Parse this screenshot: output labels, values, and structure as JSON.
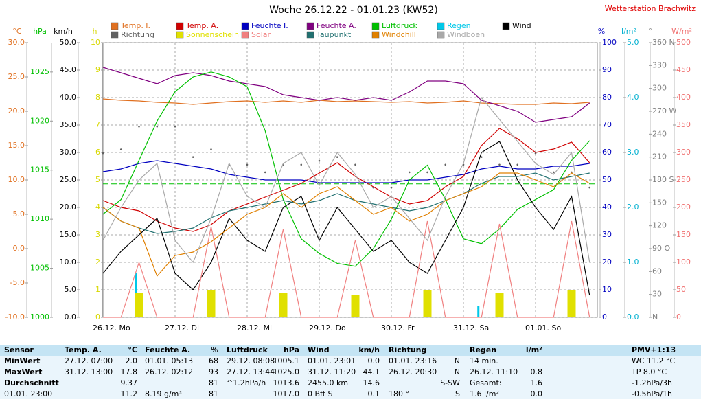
{
  "chart_data": {
    "type": "line",
    "title": "Woche 26.12.22 - 01.01.23 (KW52)",
    "station": "Wetterstation Brachwitz",
    "x_labels": [
      "26.12. Mo",
      "27.12. Di",
      "28.12. Mi",
      "29.12. Do",
      "30.12. Fr",
      "31.12. Sa",
      "01.01. So"
    ],
    "axes": [
      {
        "id": "t",
        "label": "°C",
        "color": "#e07020",
        "lim": [
          -10,
          30
        ],
        "ticks": [
          {
            "value": 30,
            "label": "30.0"
          },
          {
            "value": 25,
            "label": "25.0"
          },
          {
            "value": 20,
            "label": "20.0"
          },
          {
            "value": 15,
            "label": "15.0"
          },
          {
            "value": 10,
            "label": "10.0"
          },
          {
            "value": 5,
            "label": "5.0"
          },
          {
            "value": 0,
            "label": "0.0"
          },
          {
            "value": -5,
            "label": "-5.0"
          },
          {
            "value": -10,
            "label": "-10.0"
          }
        ]
      },
      {
        "id": "p",
        "label": "hPa",
        "color": "#00c000",
        "lim": [
          1000,
          1028
        ],
        "ticks": [
          1025,
          1020,
          1015,
          1010,
          1005,
          1000
        ]
      },
      {
        "id": "w",
        "label": "km/h",
        "color": "#000000",
        "lim": [
          0,
          50
        ],
        "ticks": [
          {
            "value": 50,
            "label": "50.0"
          },
          {
            "value": 45,
            "label": "45.0"
          },
          {
            "value": 40,
            "label": "40.0"
          },
          {
            "value": 35,
            "label": "35.0"
          },
          {
            "value": 30,
            "label": "30.0"
          },
          {
            "value": 25,
            "label": "25.0"
          },
          {
            "value": 20,
            "label": "20.0"
          },
          {
            "value": 15,
            "label": "15.0"
          },
          {
            "value": 10,
            "label": "10.0"
          },
          {
            "value": 5,
            "label": "5.0"
          },
          {
            "value": 0,
            "label": "0.0"
          }
        ]
      },
      {
        "id": "h",
        "label": "h",
        "color": "#d8d800",
        "lim": [
          0,
          10
        ],
        "ticks": [
          10,
          9,
          8,
          7,
          6,
          5,
          4,
          3,
          2,
          1,
          0
        ]
      },
      {
        "id": "rh",
        "label": "%",
        "color": "#0000c0",
        "lim": [
          0,
          100
        ],
        "ticks": [
          100,
          90,
          80,
          70,
          60,
          50,
          40,
          30,
          20,
          10,
          0
        ],
        "grid": true
      },
      {
        "id": "r",
        "label": "l/m²",
        "color": "#00b0d0",
        "lim": [
          0,
          5
        ],
        "ticks": [
          {
            "value": 5,
            "label": "5.0"
          },
          {
            "value": 4,
            "label": "4.0"
          },
          {
            "value": 3,
            "label": "3.0"
          },
          {
            "value": 2,
            "label": "2.0"
          },
          {
            "value": 1,
            "label": "1.0"
          },
          {
            "value": 0,
            "label": "0.0"
          }
        ]
      },
      {
        "id": "d",
        "label": "°",
        "color": "#808080",
        "lim": [
          0,
          360
        ],
        "ticks": [
          {
            "value": 360,
            "label": "360 N"
          },
          330,
          300,
          {
            "value": 270,
            "label": "270 W"
          },
          240,
          210,
          {
            "value": 180,
            "label": "180 S"
          },
          150,
          120,
          {
            "value": 90,
            "label": "90 O"
          },
          60,
          30,
          {
            "value": 0,
            "label": "N"
          }
        ]
      },
      {
        "id": "s",
        "label": "W/m²",
        "color": "#f07070",
        "lim": [
          0,
          500
        ],
        "ticks": [
          500,
          450,
          400,
          350,
          300,
          250,
          200,
          150,
          100,
          50,
          0
        ]
      }
    ],
    "series": [
      {
        "name": "Temp. I.",
        "color": "#e07020",
        "axis": "t",
        "style": "line",
        "values": [
          21.8,
          21.6,
          21.5,
          21.3,
          21.2,
          21.0,
          21.2,
          21.4,
          21.5,
          21.3,
          21.5,
          21.3,
          21.6,
          21.4,
          21.5,
          21.4,
          21.3,
          21.4,
          21.2,
          21.3,
          21.5,
          21.2,
          21.1,
          21.0,
          21.0,
          21.2,
          21.1,
          21.3
        ]
      },
      {
        "name": "Temp. A.",
        "color": "#d00000",
        "axis": "t",
        "style": "line",
        "values": [
          7.0,
          6.0,
          5.5,
          4.0,
          3.0,
          2.5,
          3.5,
          5.5,
          6.5,
          7.5,
          8.5,
          9.5,
          11.0,
          12.5,
          10.5,
          9.0,
          7.5,
          6.5,
          7.0,
          9.0,
          10.5,
          15.0,
          17.5,
          16.0,
          14.0,
          14.5,
          15.5,
          12.5
        ]
      },
      {
        "name": "Feuchte I.",
        "color": "#0000c0",
        "axis": "rh",
        "style": "line",
        "values": [
          53,
          54,
          56,
          57,
          56,
          55,
          54,
          52,
          51,
          50,
          50,
          50,
          49,
          49,
          49,
          49,
          49,
          50,
          50,
          51,
          52,
          54,
          55,
          54,
          54,
          55,
          55,
          56
        ]
      },
      {
        "name": "Feuchte A.",
        "color": "#800080",
        "axis": "rh",
        "style": "line",
        "values": [
          91,
          89,
          87,
          85,
          88,
          89,
          88,
          86,
          85,
          84,
          81,
          80,
          79,
          80,
          79,
          80,
          79,
          82,
          86,
          86,
          85,
          79,
          77,
          75,
          71,
          72,
          73,
          78
        ]
      },
      {
        "name": "Luftdruck",
        "color": "#00c000",
        "axis": "p",
        "style": "line",
        "values": [
          1010.5,
          1012,
          1016,
          1020,
          1023,
          1024.5,
          1025,
          1024.5,
          1023.5,
          1019,
          1012,
          1008,
          1006.5,
          1005.5,
          1005.2,
          1007,
          1010,
          1014,
          1015.5,
          1012,
          1008,
          1007.5,
          1009,
          1011,
          1012,
          1013,
          1016,
          1018
        ]
      },
      {
        "name": "Regen",
        "color": "#00c8e8",
        "axis": "r",
        "style": "bar",
        "values": [
          0,
          0,
          0.8,
          0,
          0,
          0,
          0,
          0,
          0,
          0,
          0,
          0,
          0,
          0,
          0,
          0,
          0,
          0,
          0,
          0,
          0,
          0.2,
          0,
          0,
          0,
          0,
          0,
          0
        ]
      },
      {
        "name": "Wind",
        "color": "#000000",
        "axis": "w",
        "style": "line",
        "values": [
          8,
          12,
          15,
          18,
          8,
          5,
          10,
          18,
          14,
          12,
          20,
          22,
          14,
          20,
          16,
          12,
          14,
          10,
          8,
          14,
          20,
          30,
          32,
          25,
          20,
          16,
          22,
          4
        ]
      },
      {
        "name": "Richtung",
        "color": "#606060",
        "axis": "d",
        "style": "dots",
        "values": [
          215,
          220,
          250,
          250,
          250,
          210,
          220,
          200,
          200,
          190,
          200,
          200,
          205,
          210,
          200,
          170,
          170,
          190,
          190,
          200,
          200,
          210,
          200,
          200,
          215,
          190,
          190,
          170
        ]
      },
      {
        "name": "Sonnenschein",
        "color": "#e0e000",
        "axis": "h",
        "style": "bar",
        "values": [
          0,
          0,
          0.9,
          0,
          0,
          0,
          1.0,
          0,
          0,
          0,
          0.9,
          0,
          0,
          0,
          0.8,
          0,
          0,
          0,
          1.0,
          0,
          0,
          0,
          0.9,
          0,
          0,
          0,
          1.0,
          0
        ]
      },
      {
        "name": "Solar",
        "color": "#f08080",
        "axis": "s",
        "style": "line",
        "values": [
          0,
          0,
          100,
          0,
          0,
          0,
          165,
          0,
          0,
          0,
          160,
          0,
          0,
          0,
          140,
          0,
          0,
          0,
          175,
          0,
          0,
          0,
          170,
          0,
          0,
          0,
          175,
          0
        ]
      },
      {
        "name": "Taupunkt",
        "color": "#207070",
        "axis": "t",
        "style": "line",
        "values": [
          6,
          4,
          3,
          2.2,
          2.5,
          3,
          4.5,
          5.5,
          6,
          6.5,
          7,
          6.5,
          7,
          8,
          7,
          6.5,
          6,
          5.5,
          6,
          7,
          8,
          9.5,
          10.5,
          10.5,
          11,
          10,
          10.5,
          11
        ]
      },
      {
        "name": "Windchill",
        "color": "#e08000",
        "axis": "t",
        "style": "line",
        "values": [
          6,
          4,
          3,
          -4,
          -1,
          -0.5,
          1,
          3,
          5,
          6,
          8,
          6,
          8,
          9,
          7,
          5,
          6,
          4,
          5,
          7,
          8,
          9,
          11,
          11,
          10,
          9,
          11,
          9.5
        ]
      },
      {
        "name": "Windböen",
        "color": "#a8a8a8",
        "axis": "w",
        "style": "line",
        "values": [
          14,
          20,
          25,
          28,
          14,
          10,
          18,
          28,
          22,
          20,
          28,
          30,
          24,
          30,
          26,
          20,
          22,
          18,
          14,
          22,
          28,
          40,
          36,
          32,
          28,
          26,
          30,
          10
        ]
      }
    ],
    "pressure_mean": 1013.6
  },
  "table": {
    "rows": [
      [
        "Sensor",
        "Temp. A.",
        "°C",
        "Feuchte A.",
        "%",
        "Luftdruck",
        "hPa",
        "Wind",
        "km/h",
        "Richtung",
        null,
        "Regen",
        "l/m²",
        "PMV+1:13"
      ],
      [
        "MinWert",
        "27.12. 07:00",
        "2.0",
        "01.01. 05:13",
        "68",
        "29.12. 08:08",
        "1005.1",
        "01.01. 23:01",
        "0.0",
        "01.01. 23:16",
        "N",
        "14 min.",
        null,
        "WC 11.2 °C"
      ],
      [
        "MaxWert",
        "31.12. 13:00",
        "17.8",
        "26.12. 02:12",
        "93",
        "27.12. 13:44",
        "1025.0",
        "31.12. 11:20",
        "44.1",
        "26.12. 20:30",
        "N",
        "26.12. 11:10",
        "0.8",
        "TP 8.0 °C"
      ],
      [
        "Durchschnitt",
        null,
        "9.37",
        null,
        "81",
        "^1.2hPa/h",
        "1013.6",
        "2455.0 km",
        "14.6",
        null,
        "S-SW",
        "Gesamt:",
        "1.6",
        "-1.2hPa/3h"
      ],
      [
        "01.01. 23:00",
        null,
        "11.2",
        "8.19 g/m³",
        "81",
        null,
        "1017.0",
        "0 Bft S",
        "0.1",
        "180 °",
        "S",
        "1.6 l/m²",
        "0.0",
        "-0.5hPa/1h"
      ]
    ]
  }
}
